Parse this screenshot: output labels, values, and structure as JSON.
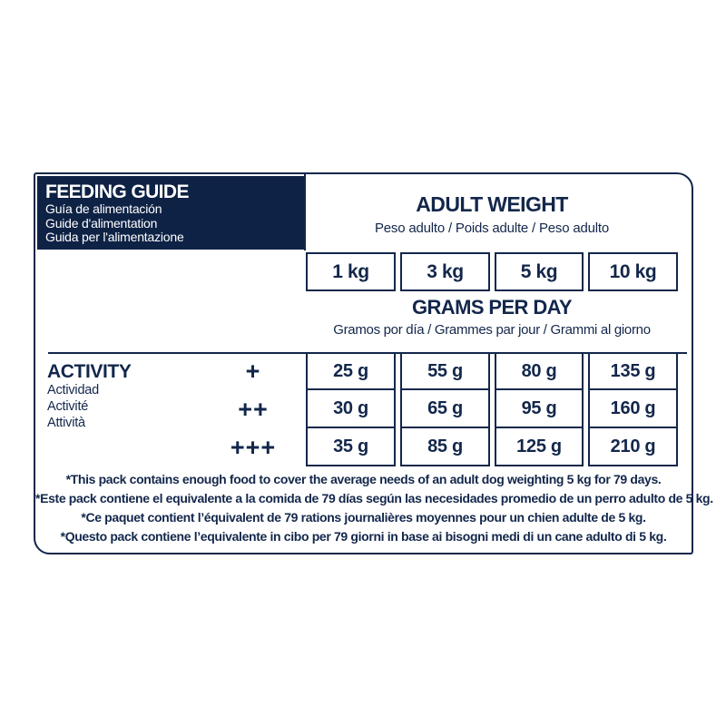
{
  "colors": {
    "navy": "#13274b",
    "header_block_bg": "#0e2245",
    "background": "#ffffff"
  },
  "feeding_guide": {
    "title": "FEEDING GUIDE",
    "subtitles": [
      "Guía de alimentación",
      "Guide d'alimentation",
      "Guida per l'alimentazione"
    ]
  },
  "adult_weight": {
    "title": "ADULT WEIGHT",
    "subtitle": "Peso adulto / Poids adulte / Peso adulto"
  },
  "weights": [
    "1 kg",
    "3 kg",
    "5 kg",
    "10 kg"
  ],
  "grams_per_day": {
    "title": "GRAMS PER DAY",
    "subtitle": "Gramos por día / Grammes par jour / Grammi al giorno"
  },
  "activity": {
    "title": "ACTIVITY",
    "subtitles": [
      "Actividad",
      "Activité",
      "Attività"
    ],
    "levels": [
      "+",
      "++",
      "+++"
    ]
  },
  "table": {
    "rows": [
      [
        "25 g",
        "55 g",
        "80 g",
        "135 g"
      ],
      [
        "30 g",
        "65 g",
        "95 g",
        "160 g"
      ],
      [
        "35 g",
        "85 g",
        "125 g",
        "210 g"
      ]
    ]
  },
  "footnotes": [
    "*This pack contains enough food to cover the average needs of an adult dog weighting 5 kg for 79 days.",
    "*Este pack contiene el equivalente a la comida de 79 días según las necesidades promedio de un perro adulto de 5 kg.",
    "*Ce paquet contient l’équivalent de 79 rations journalières moyennes pour un chien adulte de 5 kg.",
    "*Questo pack contiene l’equivalente in cibo per 79 giorni in base ai bisogni medi di un cane adulto di 5 kg."
  ],
  "chart_data": {
    "type": "table",
    "title": "FEEDING GUIDE — GRAMS PER DAY by ADULT WEIGHT and ACTIVITY",
    "columns_adult_weight_kg": [
      1,
      3,
      5,
      10
    ],
    "rows": [
      {
        "activity_level": "+",
        "grams_per_day": [
          25,
          55,
          80,
          135
        ]
      },
      {
        "activity_level": "++",
        "grams_per_day": [
          30,
          65,
          95,
          160
        ]
      },
      {
        "activity_level": "+++",
        "grams_per_day": [
          35,
          85,
          125,
          210
        ]
      }
    ],
    "units": "g"
  }
}
